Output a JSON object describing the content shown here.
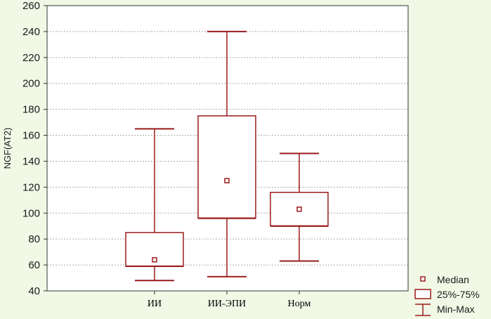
{
  "chart_data": {
    "type": "box",
    "title": "",
    "xlabel": "",
    "ylabel": "NGF(AT2)",
    "ylim": [
      40,
      260
    ],
    "yticks": [
      "40",
      "60",
      "80",
      "100",
      "120",
      "140",
      "160",
      "180",
      "200",
      "220",
      "240",
      "260"
    ],
    "grid": "horizontal-dotted",
    "categories": [
      "ИИ",
      "ИИ-ЭПИ",
      "Норм"
    ],
    "boxes": [
      {
        "category": "ИИ",
        "min": 48,
        "q1": 59,
        "median": 64,
        "q3": 85,
        "max": 165
      },
      {
        "category": "ИИ-ЭПИ",
        "min": 51,
        "q1": 96,
        "median": 125,
        "q3": 175,
        "max": 240
      },
      {
        "category": "Норм",
        "min": 63,
        "q1": 90,
        "median": 103,
        "q3": 116,
        "max": 146
      }
    ],
    "legend": {
      "placement": "bottom-right",
      "items": [
        {
          "symbol": "median",
          "label": "Median"
        },
        {
          "symbol": "box",
          "label": "25%-75%"
        },
        {
          "symbol": "whisker",
          "label": "Min-Max"
        }
      ]
    },
    "colors": {
      "background": "#f1f8e6",
      "plot_background": "#ffffff",
      "box_stroke": "#9b1b1b",
      "axis": "#333333",
      "grid": "#aaaaaa"
    }
  }
}
